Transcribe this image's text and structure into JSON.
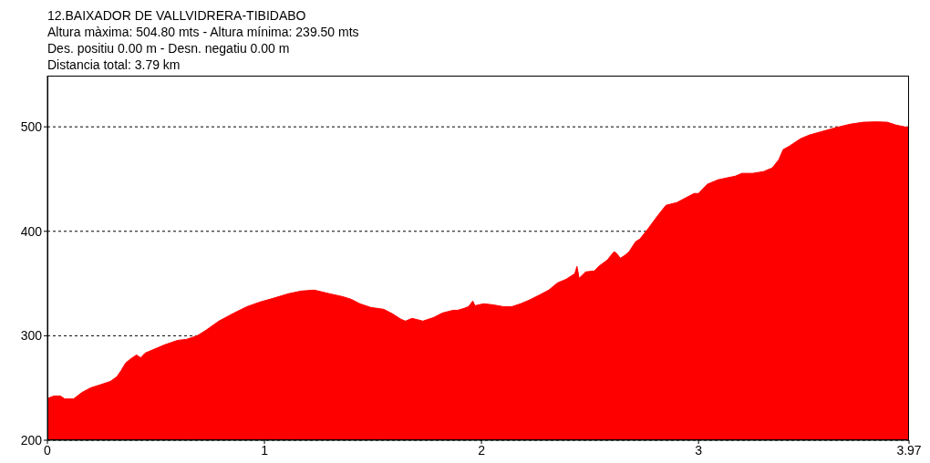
{
  "chart_data": {
    "type": "area",
    "title": "12.BAIXADOR DE VALLVIDRERA-TIBIDABO",
    "annotations": [
      "Altura màxima: 504.80 mts - Altura mínima: 239.50 mts",
      "Des. positiu 0.00 m -  Desn. negatiu 0.00 m",
      "Distancia total: 3.79 km"
    ],
    "x": [
      0,
      0.03,
      0.06,
      0.08,
      0.12,
      0.16,
      0.2,
      0.24,
      0.29,
      0.32,
      0.34,
      0.36,
      0.38,
      0.41,
      0.43,
      0.45,
      0.5,
      0.54,
      0.6,
      0.64,
      0.69,
      0.73,
      0.79,
      0.86,
      0.92,
      0.98,
      1.04,
      1.11,
      1.17,
      1.23,
      1.3,
      1.36,
      1.4,
      1.44,
      1.49,
      1.55,
      1.59,
      1.63,
      1.65,
      1.68,
      1.7,
      1.73,
      1.78,
      1.82,
      1.87,
      1.89,
      1.92,
      1.94,
      1.96,
      1.97,
      2.01,
      2.05,
      2.1,
      2.14,
      2.18,
      2.22,
      2.27,
      2.31,
      2.35,
      2.39,
      2.43,
      2.44,
      2.45,
      2.48,
      2.52,
      2.54,
      2.58,
      2.61,
      2.62,
      2.64,
      2.66,
      2.68,
      2.71,
      2.73,
      2.77,
      2.81,
      2.85,
      2.9,
      2.94,
      2.98,
      3,
      3.04,
      3.09,
      3.13,
      3.17,
      3.2,
      3.25,
      3.3,
      3.34,
      3.37,
      3.39,
      3.42,
      3.47,
      3.51,
      3.57,
      3.63,
      3.7,
      3.76,
      3.82,
      3.87,
      3.91,
      3.97
    ],
    "series": [
      {
        "color": "#ff0000",
        "values": [
          240,
          242.3,
          242.3,
          239.5,
          239.5,
          245.8,
          250.2,
          252.8,
          256.3,
          260.7,
          266.8,
          273.8,
          277.3,
          281.6,
          279,
          283.4,
          287.8,
          291.3,
          295.6,
          296.5,
          300,
          305.2,
          314,
          321.8,
          327.9,
          332.3,
          335.8,
          340.2,
          342.8,
          343.7,
          340.2,
          337.5,
          334.9,
          330.6,
          327.1,
          325.3,
          321,
          315.7,
          314,
          316.6,
          315.7,
          314,
          317.5,
          321.8,
          324.4,
          324.4,
          326.2,
          327.9,
          333.2,
          328.8,
          330.6,
          329.7,
          327.9,
          327.9,
          330.6,
          334.1,
          339.3,
          343.7,
          350.6,
          354.1,
          359.4,
          366.4,
          355,
          361.1,
          362,
          366.4,
          372.5,
          380.3,
          379.5,
          374.2,
          376.9,
          380.3,
          390,
          392.6,
          403.1,
          414.4,
          424.9,
          427.5,
          431.9,
          436.2,
          436.2,
          445,
          449.3,
          451.1,
          452.8,
          455.5,
          455.5,
          457.2,
          460.7,
          468.6,
          478.2,
          481.7,
          488.6,
          492.1,
          495.6,
          499.1,
          502.6,
          504.4,
          504.8,
          504.4,
          501.7,
          499.1
        ]
      }
    ],
    "xlim": [
      0,
      3.97
    ],
    "xticks": [
      0,
      1,
      2,
      3,
      3.97
    ],
    "ylim": [
      200,
      549
    ],
    "yticks": [
      200,
      300,
      400,
      500
    ],
    "grid": "y"
  }
}
